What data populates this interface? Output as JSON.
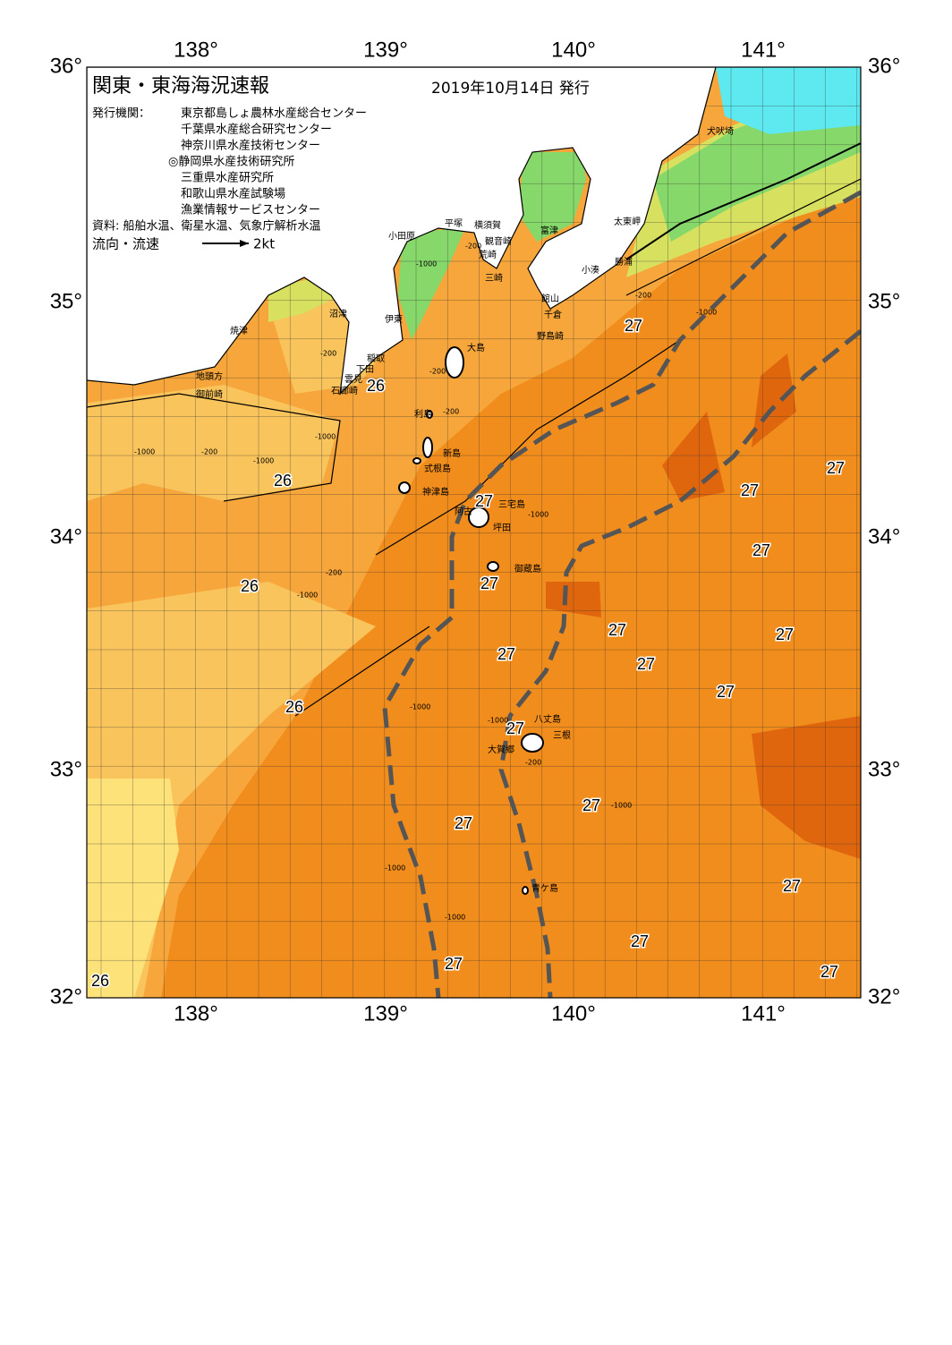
{
  "header": {
    "title": "関東・東海海況速報",
    "date": "2019年10月14日 発行",
    "issuer_label": "発行機関：",
    "issuers": [
      "東京都島しょ農林水産総合センター",
      "千葉県水産総合研究センター",
      "神奈川県水産技術センター",
      "◎静岡県水産技術研究所",
      "三重県水産研究所",
      "和歌山県水産試験場",
      "漁業情報サービスセンター"
    ],
    "source": "資料: 船舶水温、衛星水温、気象庁解析水温",
    "legend_label": "流向・流速",
    "legend_speed": "2kt"
  },
  "axes": {
    "longitudes": [
      "138°",
      "139°",
      "140°",
      "141°"
    ],
    "latitudes": [
      "36°",
      "35°",
      "34°",
      "33°",
      "32°"
    ]
  },
  "places": [
    "犬吠埼",
    "太東岬",
    "勝浦",
    "小湊",
    "館山",
    "千倉",
    "野島崎",
    "富津",
    "横須賀",
    "観音崎",
    "荒崎",
    "三崎",
    "平塚",
    "小田原",
    "伊東",
    "沼津",
    "焼津",
    "稲取",
    "下田",
    "雲見",
    "石廊崎",
    "地頭方",
    "御前崎",
    "大島",
    "利島",
    "新島",
    "式根島",
    "神津島",
    "三宅島",
    "阿古",
    "坪田",
    "御蔵島",
    "八丈島",
    "三根",
    "大賀郷",
    "青ケ島"
  ],
  "temperature_labels": [
    "26",
    "26",
    "26",
    "26",
    "26",
    "27",
    "27",
    "27",
    "27",
    "27",
    "27",
    "27",
    "27",
    "27",
    "27",
    "27",
    "27",
    "27",
    "27",
    "27",
    "27",
    "27",
    "27"
  ],
  "depth_labels": [
    "-200",
    "-1000",
    "-1000",
    "-200",
    "-1000",
    "-1000",
    "-200",
    "-200",
    "-1000",
    "-200",
    "-200",
    "-1000",
    "-1000",
    "-1000",
    "-200",
    "-1000",
    "-1000",
    "-1000",
    "-200",
    "-1000"
  ]
}
